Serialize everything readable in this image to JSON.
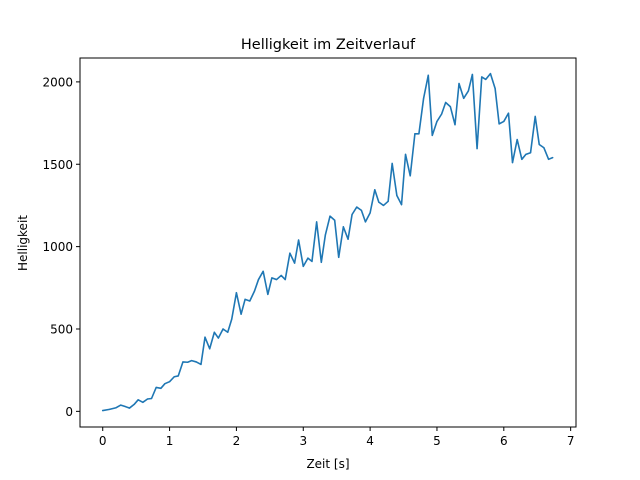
{
  "chart_data": {
    "type": "line",
    "title": "Helligkeit im Zeitverlauf",
    "xlabel": "Zeit [s]",
    "ylabel": "Helligkeit",
    "xlim": [
      -0.34,
      7.08
    ],
    "ylim": [
      -95,
      2145
    ],
    "xticks": [
      0,
      1,
      2,
      3,
      4,
      5,
      6,
      7
    ],
    "xtick_labels": [
      "0",
      "1",
      "2",
      "3",
      "4",
      "5",
      "6",
      "7"
    ],
    "yticks": [
      0,
      500,
      1000,
      1500,
      2000
    ],
    "ytick_labels": [
      "0",
      "500",
      "1000",
      "1500",
      "2000"
    ],
    "grid": false,
    "line_color": "#1f77b4",
    "series": [
      {
        "x": [
          0,
          0.1,
          0.2,
          0.27,
          0.33,
          0.4,
          0.47,
          0.53,
          0.6,
          0.67,
          0.73,
          0.8,
          0.87,
          0.93,
          1.0,
          1.07,
          1.13,
          1.2,
          1.27,
          1.33,
          1.4,
          1.47,
          1.53,
          1.6,
          1.67,
          1.73,
          1.8,
          1.87,
          1.93,
          2.0,
          2.07,
          2.13,
          2.2,
          2.27,
          2.33,
          2.4,
          2.47,
          2.53,
          2.6,
          2.67,
          2.73,
          2.8,
          2.87,
          2.93,
          3.0,
          3.07,
          3.13,
          3.2,
          3.27,
          3.33,
          3.4,
          3.47,
          3.53,
          3.6,
          3.67,
          3.73,
          3.8,
          3.87,
          3.93,
          4.0,
          4.07,
          4.13,
          4.2,
          4.27,
          4.33,
          4.4,
          4.47,
          4.53,
          4.6,
          4.67,
          4.73,
          4.8,
          4.87,
          4.93,
          5.0,
          5.07,
          5.13,
          5.2,
          5.27,
          5.33,
          5.4,
          5.47,
          5.53,
          5.6,
          5.67,
          5.73,
          5.8,
          5.87,
          5.93,
          6.0,
          6.07,
          6.13,
          6.2,
          6.27,
          6.33,
          6.4,
          6.47,
          6.53,
          6.6,
          6.67,
          6.73
        ],
        "values": [
          5,
          12,
          22,
          38,
          30,
          20,
          42,
          70,
          55,
          75,
          78,
          145,
          140,
          168,
          180,
          210,
          215,
          300,
          298,
          308,
          300,
          285,
          450,
          380,
          480,
          445,
          500,
          480,
          560,
          720,
          590,
          680,
          670,
          730,
          800,
          850,
          710,
          810,
          800,
          825,
          800,
          960,
          900,
          1040,
          880,
          930,
          910,
          1150,
          905,
          1070,
          1185,
          1160,
          935,
          1120,
          1045,
          1195,
          1240,
          1220,
          1150,
          1205,
          1345,
          1270,
          1250,
          1275,
          1505,
          1310,
          1255,
          1560,
          1430,
          1685,
          1685,
          1900,
          2040,
          1675,
          1760,
          1805,
          1875,
          1850,
          1740,
          1990,
          1900,
          1945,
          2045,
          1595,
          2030,
          2015,
          2050,
          1960,
          1745,
          1760,
          1810,
          1510,
          1650,
          1530,
          1560,
          1570,
          1790,
          1620,
          1600,
          1530,
          1540
        ]
      }
    ]
  }
}
